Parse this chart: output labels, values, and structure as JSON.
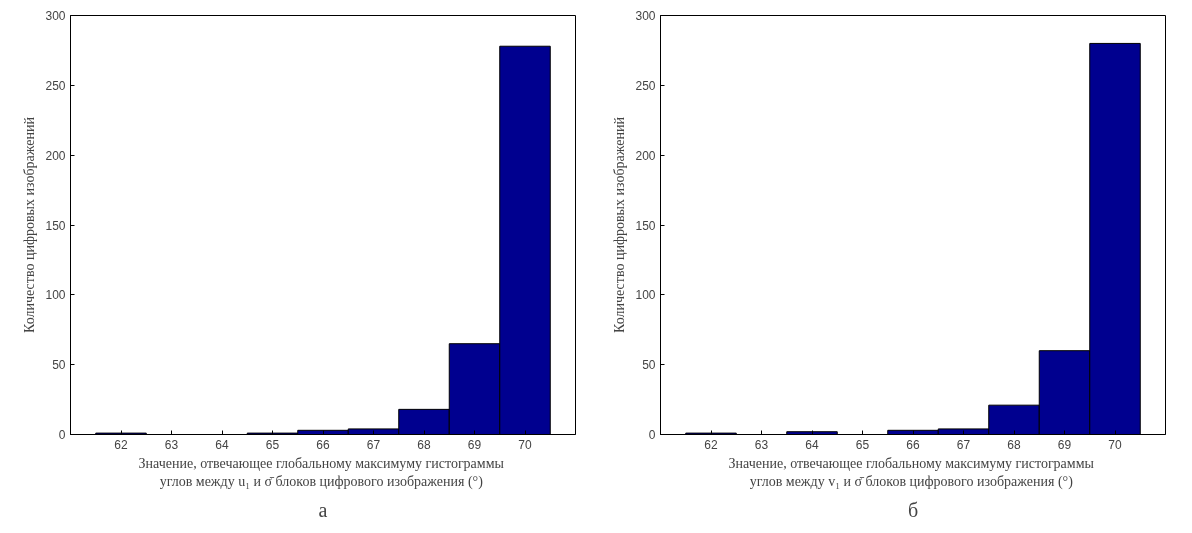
{
  "chart_data": [
    {
      "type": "histogram",
      "xlabel": "Значение, отвечающее  глобальному максимуму гистограммы\nуглов между u₁ и σ̄  блоков цифрового изображения (°)",
      "ylabel": "Количество цифровых изображений",
      "bins": [
        61.5,
        62.5,
        63.5,
        64.5,
        65.5,
        66.5,
        67.5,
        68.5,
        69.5,
        70.5
      ],
      "values": [
        1,
        0,
        0,
        1,
        3,
        4,
        18,
        65,
        278
      ],
      "color": "#00008f",
      "xlim": [
        61,
        71
      ],
      "xticks": [
        62,
        63,
        64,
        65,
        66,
        67,
        68,
        69,
        70
      ],
      "ylim": [
        0,
        300
      ],
      "yticks": [
        0,
        50,
        100,
        150,
        200,
        250,
        300
      ],
      "grid": false,
      "annotations": [
        "а"
      ]
    },
    {
      "type": "histogram",
      "xlabel": "Значение, отвечающее  глобальному максимуму гистограммы\nуглов между v₁ и σ̄  блоков цифрового изображения (°)",
      "ylabel": "Количество цифровых изображений",
      "bins": [
        61.5,
        62.5,
        63.5,
        64.5,
        65.5,
        66.5,
        67.5,
        68.5,
        69.5,
        70.5
      ],
      "values": [
        1,
        0,
        2,
        0,
        3,
        4,
        21,
        60,
        280
      ],
      "color": "#00008f",
      "xlim": [
        61,
        71
      ],
      "xticks": [
        62,
        63,
        64,
        65,
        66,
        67,
        68,
        69,
        70
      ],
      "ylim": [
        0,
        300
      ],
      "yticks": [
        0,
        50,
        100,
        150,
        200,
        250,
        300
      ],
      "grid": false,
      "annotations": [
        "б"
      ]
    }
  ]
}
